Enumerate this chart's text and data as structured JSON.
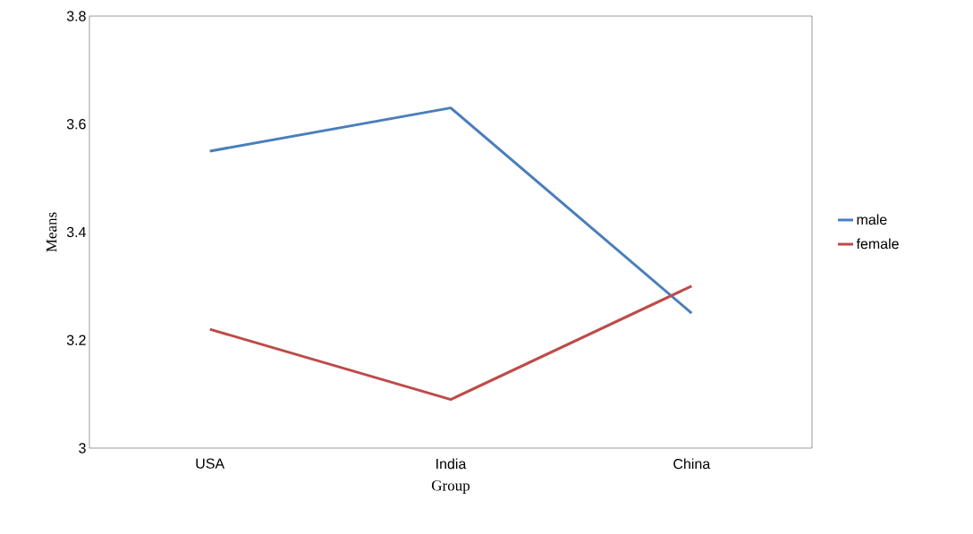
{
  "chart_data": {
    "type": "line",
    "xlabel": "Group",
    "ylabel": "Means",
    "categories": [
      "USA",
      "India",
      "China"
    ],
    "series": [
      {
        "name": "male",
        "color": "#4a7ebb",
        "values": [
          3.55,
          3.63,
          3.25
        ]
      },
      {
        "name": "female",
        "color": "#be4b48",
        "values": [
          3.22,
          3.09,
          3.3
        ]
      }
    ],
    "ylim": [
      3,
      3.8
    ],
    "yticks": [
      3,
      3.2,
      3.4,
      3.6,
      3.8
    ],
    "grid": false,
    "legend": "right",
    "marker": "none",
    "line_style": "solid"
  }
}
